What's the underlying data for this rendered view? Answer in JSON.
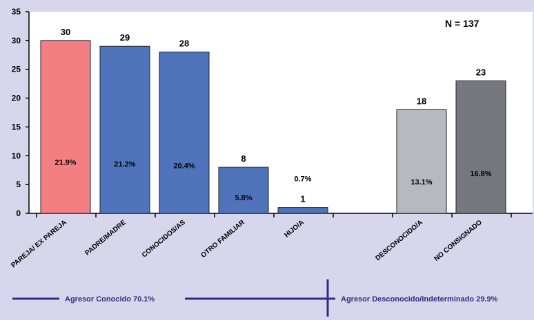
{
  "chart_data": {
    "type": "bar",
    "categories": [
      "PAREJA/ EX PAREJA",
      "PADRE/MADRE",
      "CONOCIDOS/AS",
      "OTRO FAMILIAR",
      "HIJO/A",
      "",
      "DESCONOCIDO/A",
      "NO CONSIGNADO"
    ],
    "values": [
      30,
      29,
      28,
      8,
      1,
      null,
      18,
      23
    ],
    "percent_labels": [
      "21.9%",
      "21.2%",
      "20.4%",
      "5.8%",
      "0.7%",
      "",
      "13.1%",
      "16.8%"
    ],
    "bar_colors": [
      "#f47f82",
      "#4f74bb",
      "#4f74bb",
      "#4f74bb",
      "#4f74bb",
      "",
      "#b6b9bf",
      "#75787d"
    ],
    "y_ticks": [
      "0",
      "5",
      "10",
      "15",
      "20",
      "25",
      "30",
      "35"
    ],
    "ylim": [
      0,
      35
    ],
    "annotation": "N = 137",
    "grid": false,
    "title": "",
    "xlabel": "",
    "ylabel": ""
  },
  "groups": [
    {
      "label": "Agresor Conocido 70.1%"
    },
    {
      "label": "Agresor Desconocido/Indeterminado 29.9%"
    }
  ],
  "colors": {
    "background": "#d8d6ec",
    "plot_background": "#ffffff",
    "group_line": "#2c2f80"
  }
}
